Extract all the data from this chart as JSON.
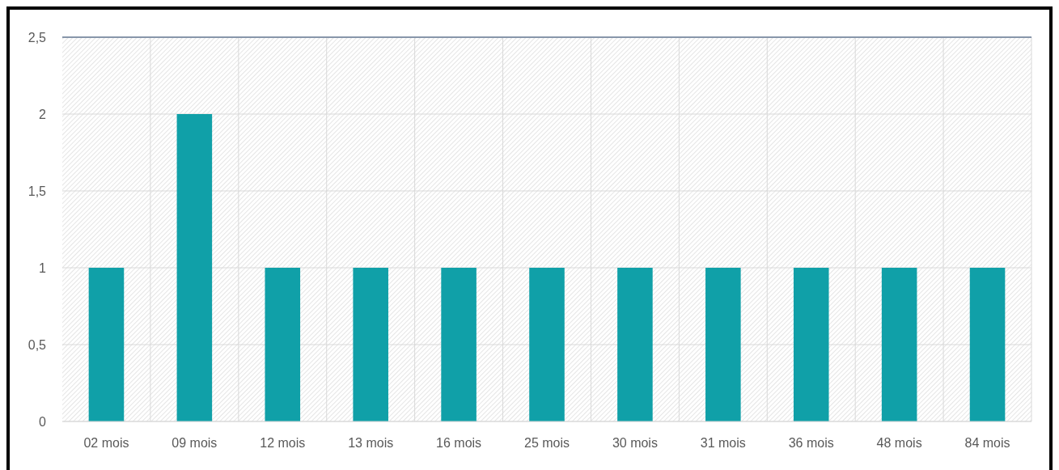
{
  "chart_data": {
    "type": "bar",
    "categories": [
      "02 mois",
      "09 mois",
      "12 mois",
      "13 mois",
      "16 mois",
      "25 mois",
      "30 mois",
      "31 mois",
      "36 mois",
      "48 mois",
      "84 mois"
    ],
    "values": [
      1,
      2,
      1,
      1,
      1,
      1,
      1,
      1,
      1,
      1,
      1
    ],
    "color": "#10a0a8",
    "ylim": [
      0,
      2.5
    ],
    "yticks": [
      0,
      {
        "value": 0.5,
        "label": "0,5"
      },
      1,
      {
        "value": 1.5,
        "label": "1,5"
      },
      2,
      {
        "value": 2.5,
        "label": "2,5"
      }
    ],
    "grid": true
  }
}
